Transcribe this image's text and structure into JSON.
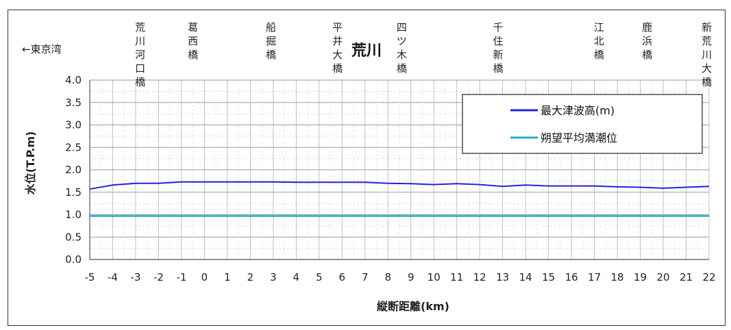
{
  "chart_data": {
    "type": "line",
    "title": "荒川",
    "direction_note": "←東京湾",
    "xlabel": "縦断距離(km)",
    "ylabel": "水位(T.P.m)",
    "xlim": [
      -5,
      22
    ],
    "ylim": [
      0,
      4.0
    ],
    "x_ticks": [
      -5,
      -4,
      -3,
      -2,
      -1,
      0,
      1,
      2,
      3,
      4,
      5,
      6,
      7,
      8,
      9,
      10,
      11,
      12,
      13,
      14,
      15,
      16,
      17,
      18,
      19,
      20,
      21,
      22
    ],
    "y_ticks": [
      "0.0",
      "0.5",
      "1.0",
      "1.5",
      "2.0",
      "2.5",
      "3.0",
      "3.5",
      "4.0"
    ],
    "grid": true,
    "legend_position": "upper-right",
    "landmarks": [
      {
        "name": "荒川河口橋",
        "x": -2.8
      },
      {
        "name": "葛西橋",
        "x": -0.5
      },
      {
        "name": "船掘橋",
        "x": 2.9
      },
      {
        "name": "平井大橋",
        "x": 5.8
      },
      {
        "name": "四ツ木橋",
        "x": 8.6
      },
      {
        "name": "千住新橋",
        "x": 12.8
      },
      {
        "name": "江北橋",
        "x": 17.2
      },
      {
        "name": "鹿浜橋",
        "x": 19.3
      },
      {
        "name": "新荒川大橋",
        "x": 21.9
      }
    ],
    "series": [
      {
        "name": "最大津波高(m)",
        "color": "#2222dd",
        "x": [
          -5,
          -4,
          -3,
          -2,
          -1,
          0,
          1,
          2,
          3,
          4,
          5,
          6,
          7,
          8,
          9,
          10,
          11,
          12,
          13,
          14,
          15,
          16,
          17,
          18,
          19,
          20,
          21,
          22
        ],
        "values": [
          1.57,
          1.66,
          1.7,
          1.7,
          1.73,
          1.73,
          1.73,
          1.73,
          1.73,
          1.72,
          1.72,
          1.72,
          1.72,
          1.7,
          1.69,
          1.67,
          1.69,
          1.67,
          1.63,
          1.66,
          1.64,
          1.64,
          1.64,
          1.62,
          1.61,
          1.59,
          1.61,
          1.63
        ]
      },
      {
        "name": "朔望平均満潮位",
        "color": "#22b0c8",
        "x": [
          -5,
          22
        ],
        "values": [
          0.97,
          0.97
        ]
      }
    ]
  }
}
